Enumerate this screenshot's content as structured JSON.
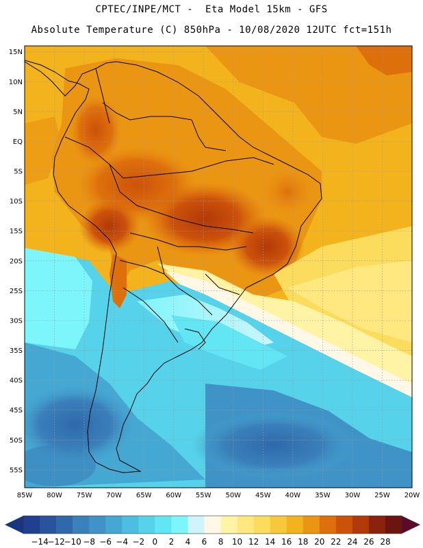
{
  "header": {
    "line1": "CPTEC/INPE/MCT -  Eta Model 15km - GFS",
    "line2": "Absolute Temperature (C) 850hPa - 10/08/2020 12UTC fct=151h"
  },
  "map": {
    "region": "South America",
    "projection": "lat-lon",
    "lon_range": [
      -85,
      -20
    ],
    "lat_range": [
      -58,
      16
    ],
    "grid": true,
    "lat_labels": [
      "15N",
      "10N",
      "5N",
      "EQ",
      "5S",
      "10S",
      "15S",
      "20S",
      "25S",
      "30S",
      "35S",
      "40S",
      "45S",
      "50S",
      "55S"
    ],
    "lat_values": [
      15,
      10,
      5,
      0,
      -5,
      -10,
      -15,
      -20,
      -25,
      -30,
      -35,
      -40,
      -45,
      -50,
      -55
    ],
    "lon_labels": [
      "85W",
      "80W",
      "75W",
      "70W",
      "65W",
      "60W",
      "55W",
      "50W",
      "45W",
      "40W",
      "35W",
      "30W",
      "25W",
      "20W"
    ],
    "lon_values": [
      -85,
      -80,
      -75,
      -70,
      -65,
      -60,
      -55,
      -50,
      -45,
      -40,
      -35,
      -30,
      -25,
      -20
    ]
  },
  "colorbar": {
    "labels": [
      "-14",
      "-12",
      "-10",
      "-8",
      "-6",
      "-4",
      "-2",
      "0",
      "2",
      "4",
      "6",
      "8",
      "10",
      "12",
      "14",
      "16",
      "18",
      "20",
      "22",
      "24",
      "26",
      "28"
    ],
    "colors": [
      "#1f3f8f",
      "#27549c",
      "#2f69ab",
      "#3a80bb",
      "#3f93c6",
      "#45a8d2",
      "#4cbedf",
      "#56d2ea",
      "#63e6f3",
      "#7df6fb",
      "#cdf5fb",
      "#fff8e6",
      "#fff3a6",
      "#ffe880",
      "#fcdc5c",
      "#f6c93c",
      "#f2b31d",
      "#eb9613",
      "#de700c",
      "#cc520a",
      "#b13a08",
      "#8b220c",
      "#6b1410"
    ],
    "under_color": "#1a3580",
    "over_color": "#5a0a2a"
  },
  "icons": {
    "left_arrow": "colorbar-under-arrow",
    "right_arrow": "colorbar-over-arrow"
  }
}
